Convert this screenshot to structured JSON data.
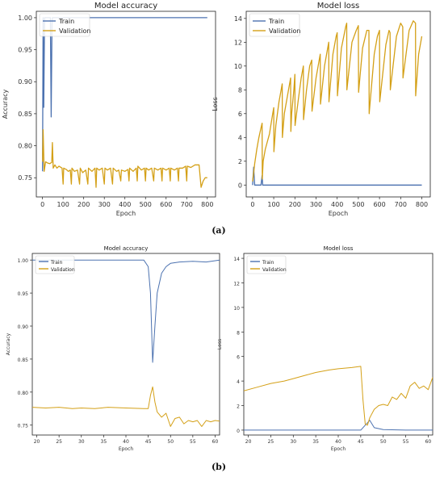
{
  "colors": {
    "train": "#4c72b0",
    "validation": "#d4a017"
  },
  "captions": {
    "a": "(a)",
    "b": "(b)"
  },
  "chart_data": [
    {
      "id": "a_acc",
      "type": "line",
      "title": "Model accuracy",
      "xlabel": "Epoch",
      "ylabel": "Accuracy",
      "xlim": [
        -30,
        840
      ],
      "ylim": [
        0.72,
        1.01
      ],
      "xticks": [
        0,
        100,
        200,
        300,
        400,
        500,
        600,
        700,
        800
      ],
      "yticks": [
        0.75,
        0.8,
        0.85,
        0.9,
        0.95,
        1.0
      ],
      "ytick_labels": [
        "0.75",
        "0.80",
        "0.85",
        "0.90",
        "0.95",
        "1.00"
      ],
      "legend": "top-left",
      "series": [
        {
          "name": "Train",
          "color_key": "train",
          "x": [
            0,
            3,
            6,
            10,
            20,
            30,
            38,
            42,
            46,
            48,
            50,
            60,
            800
          ],
          "y": [
            0.76,
            1.0,
            0.86,
            1.0,
            1.0,
            1.0,
            1.0,
            0.845,
            0.99,
            1.0,
            1.0,
            1.0,
            1.0
          ]
        },
        {
          "name": "Validation",
          "color_key": "validation",
          "x": [
            0,
            3,
            8,
            15,
            25,
            35,
            45,
            48,
            52,
            60,
            70,
            80,
            95,
            100,
            103,
            115,
            125,
            135,
            140,
            143,
            155,
            170,
            180,
            183,
            195,
            210,
            220,
            223,
            240,
            255,
            260,
            263,
            275,
            290,
            300,
            303,
            315,
            330,
            340,
            343,
            360,
            370,
            380,
            383,
            400,
            415,
            420,
            423,
            440,
            455,
            460,
            463,
            480,
            495,
            500,
            503,
            515,
            530,
            540,
            543,
            560,
            575,
            580,
            583,
            600,
            615,
            620,
            623,
            640,
            655,
            660,
            663,
            680,
            695,
            700,
            703,
            720,
            740,
            760,
            770,
            775,
            780,
            790,
            800
          ],
          "y": [
            0.775,
            0.825,
            0.76,
            0.775,
            0.773,
            0.772,
            0.774,
            0.805,
            0.765,
            0.77,
            0.765,
            0.768,
            0.765,
            0.74,
            0.765,
            0.763,
            0.76,
            0.762,
            0.74,
            0.765,
            0.76,
            0.762,
            0.74,
            0.765,
            0.758,
            0.762,
            0.74,
            0.765,
            0.76,
            0.765,
            0.735,
            0.765,
            0.762,
            0.765,
            0.74,
            0.765,
            0.762,
            0.765,
            0.74,
            0.765,
            0.76,
            0.762,
            0.745,
            0.762,
            0.76,
            0.763,
            0.745,
            0.765,
            0.76,
            0.765,
            0.745,
            0.768,
            0.762,
            0.765,
            0.745,
            0.765,
            0.762,
            0.765,
            0.745,
            0.765,
            0.762,
            0.765,
            0.745,
            0.765,
            0.762,
            0.765,
            0.745,
            0.765,
            0.762,
            0.765,
            0.745,
            0.765,
            0.765,
            0.768,
            0.745,
            0.768,
            0.766,
            0.77,
            0.77,
            0.735,
            0.74,
            0.745,
            0.75,
            0.75
          ]
        }
      ]
    },
    {
      "id": "a_loss",
      "type": "line",
      "title": "Model loss",
      "xlabel": "Epoch",
      "ylabel": "Loss",
      "xlim": [
        -30,
        840
      ],
      "ylim": [
        -1,
        14.6
      ],
      "xticks": [
        0,
        100,
        200,
        300,
        400,
        500,
        600,
        700,
        800
      ],
      "yticks": [
        0,
        2,
        4,
        6,
        8,
        10,
        12,
        14
      ],
      "ytick_labels": [
        "0",
        "2",
        "4",
        "6",
        "8",
        "10",
        "12",
        "14"
      ],
      "legend": "top-left",
      "series": [
        {
          "name": "Train",
          "color_key": "train",
          "x": [
            0,
            5,
            10,
            30,
            40,
            45,
            48,
            55,
            800
          ],
          "y": [
            0,
            1.5,
            0,
            0,
            0,
            0.8,
            0,
            0,
            0
          ]
        },
        {
          "name": "Validation",
          "color_key": "validation",
          "x": [
            0,
            5,
            10,
            20,
            30,
            40,
            45,
            46,
            50,
            60,
            80,
            95,
            100,
            101,
            110,
            125,
            140,
            141,
            150,
            165,
            180,
            181,
            185,
            195,
            200,
            201,
            215,
            230,
            240,
            241,
            255,
            270,
            280,
            281,
            300,
            315,
            320,
            321,
            340,
            355,
            360,
            361,
            380,
            395,
            400,
            401,
            420,
            440,
            445,
            446,
            470,
            490,
            500,
            501,
            520,
            540,
            550,
            551,
            575,
            590,
            600,
            601,
            630,
            645,
            650,
            651,
            680,
            700,
            710,
            711,
            740,
            760,
            770,
            771,
            785,
            800
          ],
          "y": [
            0.3,
            1.0,
            1.8,
            3.0,
            4.0,
            4.8,
            5.2,
            0.5,
            2.0,
            3.0,
            4.3,
            6.0,
            6.5,
            2.8,
            5.0,
            7.0,
            8.5,
            4.0,
            6.0,
            7.5,
            9.0,
            4.5,
            6.0,
            8.0,
            9.3,
            5.0,
            7.0,
            9.0,
            10.0,
            5.5,
            8.0,
            10.0,
            10.5,
            6.2,
            9.0,
            10.5,
            11.0,
            6.8,
            10.0,
            11.5,
            12.0,
            7.0,
            11.0,
            12.5,
            12.8,
            7.5,
            11.5,
            13.3,
            13.6,
            8.0,
            12.0,
            13.0,
            13.4,
            7.8,
            11.5,
            13.0,
            13.0,
            6.0,
            11.0,
            12.5,
            13.0,
            7.0,
            11.8,
            13.0,
            12.8,
            8.0,
            12.5,
            13.6,
            13.3,
            9.0,
            13.0,
            13.8,
            13.6,
            7.5,
            11.0,
            12.5
          ]
        }
      ]
    },
    {
      "id": "b_acc",
      "type": "line",
      "title": "Model accuracy",
      "xlabel": "Epoch",
      "ylabel": "Accuracy",
      "xlim": [
        19,
        61
      ],
      "ylim": [
        0.735,
        1.01
      ],
      "xticks": [
        20,
        25,
        30,
        35,
        40,
        45,
        50,
        55,
        60
      ],
      "yticks": [
        0.75,
        0.8,
        0.85,
        0.9,
        0.95,
        1.0
      ],
      "ytick_labels": [
        "0.75",
        "0.80",
        "0.85",
        "0.90",
        "0.95",
        "1.00"
      ],
      "legend": "top-left",
      "series": [
        {
          "name": "Train",
          "color_key": "train",
          "x": [
            19,
            44,
            45,
            45.5,
            46,
            46.5,
            47,
            48,
            49,
            50,
            52,
            55,
            58,
            61
          ],
          "y": [
            1.0,
            1.0,
            0.99,
            0.95,
            0.845,
            0.9,
            0.95,
            0.98,
            0.99,
            0.995,
            0.997,
            0.998,
            0.997,
            1.0
          ]
        },
        {
          "name": "Validation",
          "color_key": "validation",
          "x": [
            19,
            22,
            25,
            28,
            30,
            33,
            36,
            40,
            44,
            45,
            45.5,
            46,
            46.5,
            47,
            48,
            49,
            50,
            51,
            52,
            53,
            54,
            55,
            56,
            57,
            58,
            59,
            60,
            61
          ],
          "y": [
            0.777,
            0.776,
            0.777,
            0.775,
            0.776,
            0.775,
            0.777,
            0.776,
            0.775,
            0.775,
            0.795,
            0.808,
            0.785,
            0.77,
            0.762,
            0.768,
            0.748,
            0.76,
            0.762,
            0.752,
            0.757,
            0.755,
            0.757,
            0.748,
            0.757,
            0.755,
            0.757,
            0.756
          ]
        }
      ]
    },
    {
      "id": "b_loss",
      "type": "line",
      "title": "Model loss",
      "xlabel": "Epoch",
      "ylabel": "Loss",
      "xlim": [
        19,
        61
      ],
      "ylim": [
        -0.4,
        14.4
      ],
      "xticks": [
        20,
        25,
        30,
        35,
        40,
        45,
        50,
        55,
        60
      ],
      "yticks": [
        0,
        2,
        4,
        6,
        8,
        10,
        12,
        14
      ],
      "ytick_labels": [
        "0",
        "2",
        "4",
        "6",
        "8",
        "10",
        "12",
        "14"
      ],
      "legend": "top-left",
      "series": [
        {
          "name": "Train",
          "color_key": "train",
          "x": [
            19,
            45,
            46,
            47,
            48,
            50,
            55,
            61
          ],
          "y": [
            0,
            0,
            0.4,
            0.8,
            0.2,
            0.05,
            0,
            0
          ]
        },
        {
          "name": "Validation",
          "color_key": "validation",
          "x": [
            19,
            22,
            25,
            28,
            30,
            33,
            35,
            38,
            40,
            43,
            45,
            45.5,
            46,
            46.5,
            47,
            48,
            49,
            50,
            51,
            52,
            53,
            54,
            55,
            56,
            57,
            58,
            59,
            60,
            61
          ],
          "y": [
            3.2,
            3.5,
            3.8,
            4.0,
            4.2,
            4.5,
            4.7,
            4.9,
            5.0,
            5.1,
            5.2,
            2.5,
            0.5,
            0.4,
            1.0,
            1.7,
            2.0,
            2.1,
            2.0,
            2.7,
            2.5,
            3.0,
            2.6,
            3.6,
            3.9,
            3.4,
            3.6,
            3.3,
            4.3
          ]
        }
      ]
    }
  ]
}
